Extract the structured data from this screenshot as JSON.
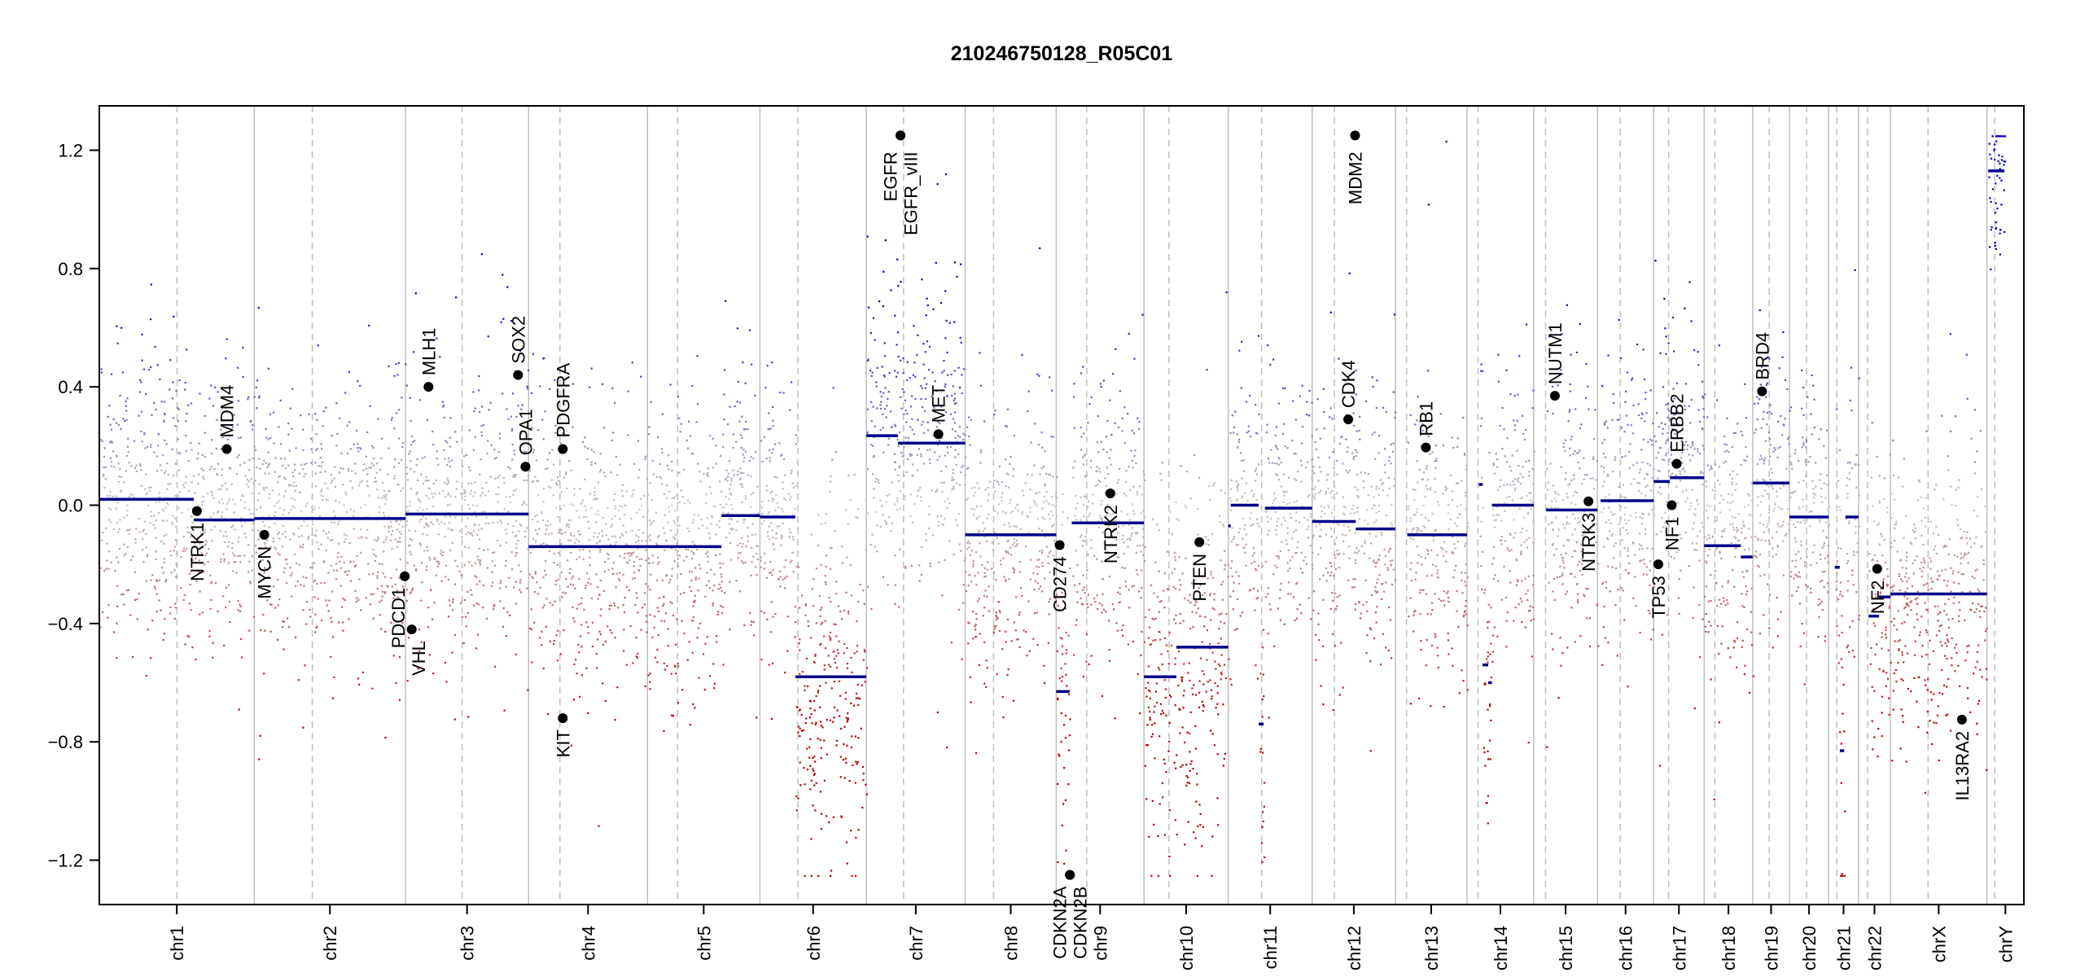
{
  "chart_data": {
    "type": "scatter",
    "title": "210246750128_R05C01",
    "xlabel": "",
    "ylabel": "",
    "ylim": [
      -1.35,
      1.35
    ],
    "yticks": [
      -1.2,
      -0.8,
      -0.4,
      0.0,
      0.4,
      0.8,
      1.2
    ],
    "ytick_labels": [
      "−1.2",
      "−0.8",
      "−0.4",
      "0.0",
      "0.4",
      "0.8",
      "1.2"
    ],
    "grid": false,
    "chromosomes": [
      {
        "name": "chr1",
        "length_mb": 249.3,
        "centromere_mb": 125.0
      },
      {
        "name": "chr2",
        "length_mb": 243.2,
        "centromere_mb": 93.3
      },
      {
        "name": "chr3",
        "length_mb": 198.0,
        "centromere_mb": 91.0
      },
      {
        "name": "chr4",
        "length_mb": 191.2,
        "centromere_mb": 50.4
      },
      {
        "name": "chr5",
        "length_mb": 180.9,
        "centromere_mb": 48.4
      },
      {
        "name": "chr6",
        "length_mb": 171.1,
        "centromere_mb": 61.0
      },
      {
        "name": "chr7",
        "length_mb": 159.1,
        "centromere_mb": 59.9
      },
      {
        "name": "chr8",
        "length_mb": 146.4,
        "centromere_mb": 45.6
      },
      {
        "name": "chr9",
        "length_mb": 141.2,
        "centromere_mb": 49.0
      },
      {
        "name": "chr10",
        "length_mb": 135.5,
        "centromere_mb": 40.2
      },
      {
        "name": "chr11",
        "length_mb": 135.0,
        "centromere_mb": 53.7
      },
      {
        "name": "chr12",
        "length_mb": 133.9,
        "centromere_mb": 35.8
      },
      {
        "name": "chr13",
        "length_mb": 115.2,
        "centromere_mb": 17.9
      },
      {
        "name": "chr14",
        "length_mb": 107.3,
        "centromere_mb": 17.6
      },
      {
        "name": "chr15",
        "length_mb": 102.5,
        "centromere_mb": 19.0
      },
      {
        "name": "chr16",
        "length_mb": 90.4,
        "centromere_mb": 36.6
      },
      {
        "name": "chr17",
        "length_mb": 81.2,
        "centromere_mb": 24.0
      },
      {
        "name": "chr18",
        "length_mb": 78.1,
        "centromere_mb": 17.2
      },
      {
        "name": "chr19",
        "length_mb": 59.1,
        "centromere_mb": 26.5
      },
      {
        "name": "chr20",
        "length_mb": 63.0,
        "centromere_mb": 27.5
      },
      {
        "name": "chr21",
        "length_mb": 48.1,
        "centromere_mb": 13.2
      },
      {
        "name": "chr22",
        "length_mb": 51.3,
        "centromere_mb": 14.7
      },
      {
        "name": "chrX",
        "length_mb": 155.3,
        "centromere_mb": 60.6
      },
      {
        "name": "chrY",
        "length_mb": 59.4,
        "centromere_mb": 12.5
      }
    ],
    "segments": [
      {
        "chrom": "chr1",
        "start_mb": 0,
        "end_mb": 152,
        "value": 0.02
      },
      {
        "chrom": "chr1",
        "start_mb": 152,
        "end_mb": 249.3,
        "value": -0.05
      },
      {
        "chrom": "chr2",
        "start_mb": 0,
        "end_mb": 243.2,
        "value": -0.045
      },
      {
        "chrom": "chr3",
        "start_mb": 0,
        "end_mb": 198,
        "value": -0.03
      },
      {
        "chrom": "chr4",
        "start_mb": 0,
        "end_mb": 191.2,
        "value": -0.14
      },
      {
        "chrom": "chr5",
        "start_mb": 0,
        "end_mb": 119,
        "value": -0.14
      },
      {
        "chrom": "chr5",
        "start_mb": 119,
        "end_mb": 180.9,
        "value": -0.035
      },
      {
        "chrom": "chr6",
        "start_mb": 0,
        "end_mb": 57,
        "value": -0.04
      },
      {
        "chrom": "chr6",
        "start_mb": 57,
        "end_mb": 171.1,
        "value": -0.58
      },
      {
        "chrom": "chr7",
        "start_mb": 0,
        "end_mb": 51,
        "value": 0.235
      },
      {
        "chrom": "chr7",
        "start_mb": 51,
        "end_mb": 159.1,
        "value": 0.21
      },
      {
        "chrom": "chr8",
        "start_mb": 0,
        "end_mb": 146.4,
        "value": -0.1
      },
      {
        "chrom": "chr9",
        "start_mb": 0,
        "end_mb": 21,
        "value": -0.63
      },
      {
        "chrom": "chr9",
        "start_mb": 25,
        "end_mb": 141.2,
        "value": -0.06
      },
      {
        "chrom": "chr10",
        "start_mb": 0,
        "end_mb": 52,
        "value": -0.58
      },
      {
        "chrom": "chr10",
        "start_mb": 52,
        "end_mb": 135.5,
        "value": -0.48
      },
      {
        "chrom": "chr11",
        "start_mb": 0,
        "end_mb": 4,
        "value": -0.07
      },
      {
        "chrom": "chr11",
        "start_mb": 4,
        "end_mb": 49,
        "value": 0.0
      },
      {
        "chrom": "chr11",
        "start_mb": 49,
        "end_mb": 57,
        "value": -0.74
      },
      {
        "chrom": "chr11",
        "start_mb": 59,
        "end_mb": 135,
        "value": -0.01
      },
      {
        "chrom": "chr12",
        "start_mb": 0,
        "end_mb": 70,
        "value": -0.055
      },
      {
        "chrom": "chr12",
        "start_mb": 70,
        "end_mb": 133.9,
        "value": -0.08
      },
      {
        "chrom": "chr13",
        "start_mb": 19,
        "end_mb": 115.2,
        "value": -0.1
      },
      {
        "chrom": "chr14",
        "start_mb": 19,
        "end_mb": 25,
        "value": 0.07
      },
      {
        "chrom": "chr14",
        "start_mb": 25,
        "end_mb": 34,
        "value": -0.54
      },
      {
        "chrom": "chr14",
        "start_mb": 34,
        "end_mb": 40,
        "value": -0.6
      },
      {
        "chrom": "chr14",
        "start_mb": 40,
        "end_mb": 107.3,
        "value": 0.0
      },
      {
        "chrom": "chr15",
        "start_mb": 20,
        "end_mb": 102.5,
        "value": -0.016
      },
      {
        "chrom": "chr16",
        "start_mb": 5,
        "end_mb": 90.4,
        "value": 0.015
      },
      {
        "chrom": "chr17",
        "start_mb": 0,
        "end_mb": 26,
        "value": 0.08
      },
      {
        "chrom": "chr17",
        "start_mb": 26,
        "end_mb": 81.2,
        "value": 0.093
      },
      {
        "chrom": "chr18",
        "start_mb": 0,
        "end_mb": 59,
        "value": -0.137
      },
      {
        "chrom": "chr18",
        "start_mb": 59,
        "end_mb": 78.1,
        "value": -0.175
      },
      {
        "chrom": "chr19",
        "start_mb": 0,
        "end_mb": 59.1,
        "value": 0.075
      },
      {
        "chrom": "chr20",
        "start_mb": 0,
        "end_mb": 63,
        "value": -0.04
      },
      {
        "chrom": "chr21",
        "start_mb": 10,
        "end_mb": 18,
        "value": -0.21
      },
      {
        "chrom": "chr21",
        "start_mb": 18,
        "end_mb": 25,
        "value": -0.83
      },
      {
        "chrom": "chr21",
        "start_mb": 27,
        "end_mb": 48.1,
        "value": -0.04
      },
      {
        "chrom": "chr22",
        "start_mb": 16,
        "end_mb": 33,
        "value": -0.375
      },
      {
        "chrom": "chr22",
        "start_mb": 33,
        "end_mb": 51.3,
        "value": -0.31
      },
      {
        "chrom": "chrX",
        "start_mb": 0,
        "end_mb": 155.3,
        "value": -0.3
      },
      {
        "chrom": "chrY",
        "start_mb": 2,
        "end_mb": 28,
        "value": 1.13
      }
    ],
    "genes": [
      {
        "name": "NTRK1",
        "chrom": "chr1",
        "pos_mb": 157,
        "value": -0.02
      },
      {
        "name": "MDM4",
        "chrom": "chr1",
        "pos_mb": 205,
        "value": 0.19
      },
      {
        "name": "MYCN",
        "chrom": "chr2",
        "pos_mb": 16,
        "value": -0.1
      },
      {
        "name": "PDCD1",
        "chrom": "chr2",
        "pos_mb": 242,
        "value": -0.24
      },
      {
        "name": "VHL",
        "chrom": "chr3",
        "pos_mb": 10,
        "value": -0.42
      },
      {
        "name": "MLH1",
        "chrom": "chr3",
        "pos_mb": 37,
        "value": 0.4
      },
      {
        "name": "SOX2",
        "chrom": "chr3",
        "pos_mb": 181,
        "value": 0.44
      },
      {
        "name": "OPA1",
        "chrom": "chr3",
        "pos_mb": 193,
        "value": 0.13
      },
      {
        "name": "PDGFRA",
        "chrom": "chr4",
        "pos_mb": 55,
        "value": 0.19
      },
      {
        "name": "KIT",
        "chrom": "chr4",
        "pos_mb": 55,
        "value": -0.72
      },
      {
        "name": "EGFR",
        "chrom": "chr7",
        "pos_mb": 55,
        "value": 1.25
      },
      {
        "name": "EGFR_vIII",
        "chrom": "chr7",
        "pos_mb": 55,
        "value": 1.25
      },
      {
        "name": "MET",
        "chrom": "chr7",
        "pos_mb": 116,
        "value": 0.24
      },
      {
        "name": "CD274",
        "chrom": "chr9",
        "pos_mb": 5.5,
        "value": -0.135
      },
      {
        "name": "CDKN2A",
        "chrom": "chr9",
        "pos_mb": 22,
        "value": -1.25
      },
      {
        "name": "CDKN2B",
        "chrom": "chr9",
        "pos_mb": 22,
        "value": -1.25
      },
      {
        "name": "NTRK2",
        "chrom": "chr9",
        "pos_mb": 87,
        "value": 0.04
      },
      {
        "name": "PTEN",
        "chrom": "chr10",
        "pos_mb": 89,
        "value": -0.125
      },
      {
        "name": "CDK4",
        "chrom": "chr12",
        "pos_mb": 58,
        "value": 0.29
      },
      {
        "name": "MDM2",
        "chrom": "chr12",
        "pos_mb": 69,
        "value": 1.25
      },
      {
        "name": "RB1",
        "chrom": "chr13",
        "pos_mb": 49,
        "value": 0.195
      },
      {
        "name": "NUTM1",
        "chrom": "chr15",
        "pos_mb": 34,
        "value": 0.37
      },
      {
        "name": "NTRK3",
        "chrom": "chr15",
        "pos_mb": 88,
        "value": 0.013
      },
      {
        "name": "TP53",
        "chrom": "chr17",
        "pos_mb": 7.5,
        "value": -0.2
      },
      {
        "name": "NF1",
        "chrom": "chr17",
        "pos_mb": 29,
        "value": 0.0
      },
      {
        "name": "ERBB2",
        "chrom": "chr17",
        "pos_mb": 37,
        "value": 0.14
      },
      {
        "name": "BRD4",
        "chrom": "chr19",
        "pos_mb": 15,
        "value": 0.385
      },
      {
        "name": "NF2",
        "chrom": "chr22",
        "pos_mb": 30,
        "value": -0.215
      },
      {
        "name": "IL13RA2",
        "chrom": "chrX",
        "pos_mb": 115,
        "value": -0.725
      }
    ],
    "colors": {
      "segment": "#00008B",
      "gain": "#0000B4",
      "loss": "#B40000",
      "neutral": "#C8C8C8",
      "gene_point": "#000000",
      "chrom_border": "#BEBEBE",
      "centromere": "#BEBEBE"
    }
  }
}
